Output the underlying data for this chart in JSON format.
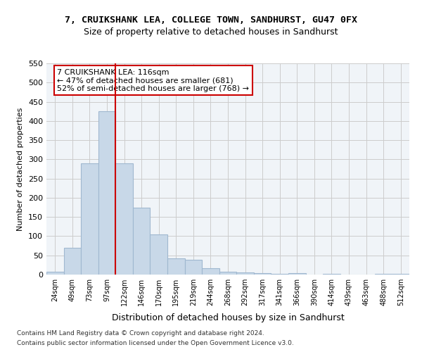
{
  "title": "7, CRUIKSHANK LEA, COLLEGE TOWN, SANDHURST, GU47 0FX",
  "subtitle": "Size of property relative to detached houses in Sandhurst",
  "xlabel": "Distribution of detached houses by size in Sandhurst",
  "ylabel": "Number of detached properties",
  "bar_color": "#c8d8e8",
  "bar_edge_color": "#a0b8d0",
  "grid_color": "#cccccc",
  "annotation_line_color": "#cc0000",
  "annotation_box_color": "#cc0000",
  "annotation_text": "7 CRUIKSHANK LEA: 116sqm\n← 47% of detached houses are smaller (681)\n52% of semi-detached houses are larger (768) →",
  "footer_line1": "Contains HM Land Registry data © Crown copyright and database right 2024.",
  "footer_line2": "Contains public sector information licensed under the Open Government Licence v3.0.",
  "categories": [
    "24sqm",
    "49sqm",
    "73sqm",
    "97sqm",
    "122sqm",
    "146sqm",
    "170sqm",
    "195sqm",
    "219sqm",
    "244sqm",
    "268sqm",
    "292sqm",
    "317sqm",
    "341sqm",
    "366sqm",
    "390sqm",
    "414sqm",
    "439sqm",
    "463sqm",
    "488sqm",
    "512sqm"
  ],
  "values": [
    8,
    70,
    290,
    425,
    290,
    175,
    105,
    43,
    38,
    16,
    8,
    5,
    3,
    1,
    3,
    0,
    1,
    0,
    0,
    2,
    1
  ],
  "ylim": [
    0,
    550
  ],
  "yticks": [
    0,
    50,
    100,
    150,
    200,
    250,
    300,
    350,
    400,
    450,
    500,
    550
  ],
  "property_bar_idx": 4,
  "bg_color": "#f0f4f8"
}
